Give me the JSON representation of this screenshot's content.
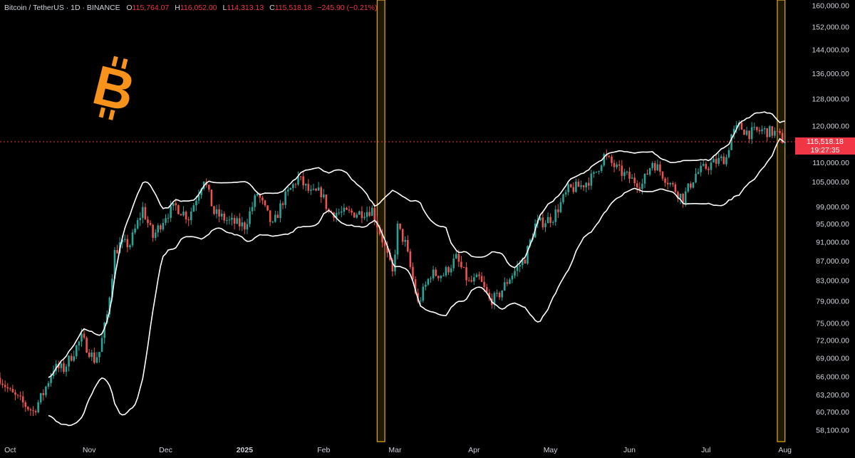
{
  "header": {
    "symbol": "Bitcoin / TetherUS · 1D · BINANCE",
    "o_label": "O",
    "o": "115,764.07",
    "h_label": "H",
    "h": "116,052.00",
    "l_label": "L",
    "l": "114,313.13",
    "c_label": "C",
    "c": "115,518.18",
    "change": "−245.90 (−0.21%)"
  },
  "last_price": {
    "value": "115,518.18",
    "countdown": "19:27:35"
  },
  "colors": {
    "up": "#26a69a",
    "down": "#ef5350",
    "band": "#ffffff",
    "highlight": "#d4a017",
    "logo": "#f7931a",
    "price_line": "#f23645"
  },
  "icon": "bitcoin-logo-icon",
  "chart_data": {
    "type": "candlestick",
    "scale": "log",
    "overlay": "Bollinger Bands",
    "x_tick_labels": [
      "Oct",
      "Nov",
      "Dec",
      "2025",
      "Feb",
      "Mar",
      "Apr",
      "May",
      "Jun",
      "Jul",
      "Aug"
    ],
    "y_tick_labels": [
      "160,000.00",
      "152,000.00",
      "144,000.00",
      "136,000.00",
      "128,000.00",
      "120,000.00",
      "110,000.00",
      "105,000.00",
      "99,000.00",
      "95,000.00",
      "91,000.00",
      "87,000.00",
      "83,000.00",
      "79,000.00",
      "75,000.00",
      "72,000.00",
      "69,000.00",
      "66,000.00",
      "63,200.00",
      "60,700.00",
      "58,100.00"
    ],
    "y_ticks": [
      160000,
      152000,
      144000,
      136000,
      128000,
      120000,
      110000,
      105000,
      99000,
      95000,
      91000,
      87000,
      83000,
      79000,
      75000,
      72000,
      69000,
      66000,
      63200,
      60700,
      58100
    ],
    "ylim": [
      56500,
      162000
    ],
    "xlim": [
      "2024-09-27",
      "2025-08-05"
    ],
    "highlight_periods": [
      [
        "2025-02-22",
        "2025-02-25"
      ],
      [
        "2025-07-29",
        "2025-08-01"
      ]
    ],
    "price_path": [
      [
        "2024-09-27",
        65800
      ],
      [
        "2024-10-01",
        63500
      ],
      [
        "2024-10-05",
        62200
      ],
      [
        "2024-10-10",
        60700
      ],
      [
        "2024-10-14",
        63400
      ],
      [
        "2024-10-18",
        67400
      ],
      [
        "2024-10-22",
        67200
      ],
      [
        "2024-10-29",
        72300
      ],
      [
        "2024-11-03",
        68700
      ],
      [
        "2024-11-05",
        70000
      ],
      [
        "2024-11-08",
        76400
      ],
      [
        "2024-11-11",
        88700
      ],
      [
        "2024-11-13",
        90400
      ],
      [
        "2024-11-17",
        90500
      ],
      [
        "2024-11-22",
        98500
      ],
      [
        "2024-11-26",
        92000
      ],
      [
        "2024-12-01",
        97000
      ],
      [
        "2024-12-05",
        99000
      ],
      [
        "2024-12-10",
        96500
      ],
      [
        "2024-12-16",
        106000
      ],
      [
        "2024-12-20",
        97500
      ],
      [
        "2024-12-26",
        95500
      ],
      [
        "2025-01-01",
        94500
      ],
      [
        "2025-01-06",
        102200
      ],
      [
        "2025-01-12",
        94400
      ],
      [
        "2025-01-16",
        100400
      ],
      [
        "2025-01-22",
        106000
      ],
      [
        "2025-01-27",
        102000
      ],
      [
        "2025-01-31",
        102400
      ],
      [
        "2025-02-03",
        97700
      ],
      [
        "2025-02-10",
        97400
      ],
      [
        "2025-02-15",
        97500
      ],
      [
        "2025-02-20",
        98300
      ],
      [
        "2025-02-24",
        91500
      ],
      [
        "2025-02-28",
        84300
      ],
      [
        "2025-03-02",
        94200
      ],
      [
        "2025-03-05",
        90600
      ],
      [
        "2025-03-10",
        78500
      ],
      [
        "2025-03-15",
        84300
      ],
      [
        "2025-03-20",
        84200
      ],
      [
        "2025-03-25",
        87500
      ],
      [
        "2025-03-30",
        82500
      ],
      [
        "2025-04-03",
        83300
      ],
      [
        "2025-04-07",
        79200
      ],
      [
        "2025-04-10",
        79600
      ],
      [
        "2025-04-15",
        83600
      ],
      [
        "2025-04-21",
        87500
      ],
      [
        "2025-04-25",
        94700
      ],
      [
        "2025-05-02",
        96500
      ],
      [
        "2025-05-08",
        103000
      ],
      [
        "2025-05-13",
        104000
      ],
      [
        "2025-05-18",
        106400
      ],
      [
        "2025-05-22",
        111700
      ],
      [
        "2025-05-28",
        107700
      ],
      [
        "2025-06-02",
        105500
      ],
      [
        "2025-06-06",
        104400
      ],
      [
        "2025-06-10",
        110200
      ],
      [
        "2025-06-17",
        104500
      ],
      [
        "2025-06-22",
        100900
      ],
      [
        "2025-06-27",
        107000
      ],
      [
        "2025-07-03",
        109500
      ],
      [
        "2025-07-09",
        111300
      ],
      [
        "2025-07-11",
        117500
      ],
      [
        "2025-07-14",
        119800
      ],
      [
        "2025-07-18",
        117900
      ],
      [
        "2025-07-23",
        118700
      ],
      [
        "2025-07-28",
        118000
      ],
      [
        "2025-08-01",
        115518
      ]
    ]
  }
}
